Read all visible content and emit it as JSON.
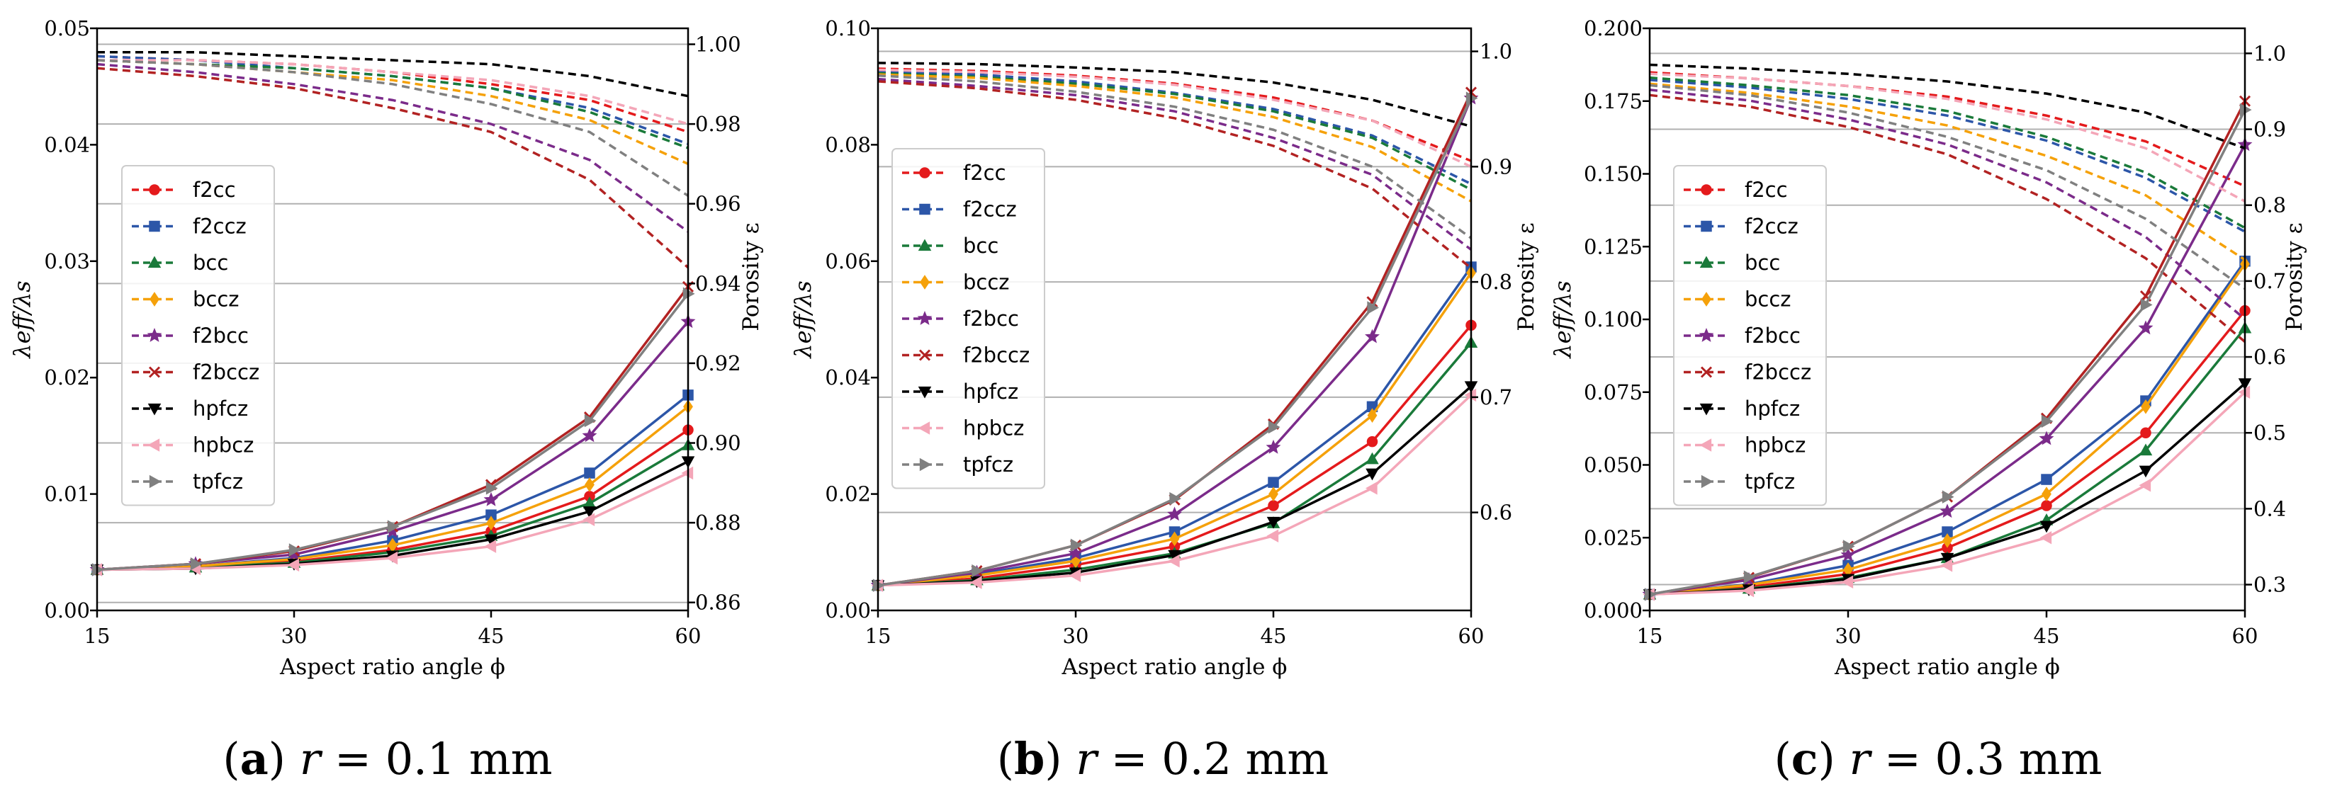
{
  "figure": {
    "captions": [
      {
        "label_prefix": "(",
        "label": "a",
        "label_suffix": ")",
        "var": "r",
        "rest": " = 0.1 mm"
      },
      {
        "label_prefix": "(",
        "label": "b",
        "label_suffix": ")",
        "var": "r",
        "rest": " = 0.2 mm"
      },
      {
        "label_prefix": "(",
        "label": "c",
        "label_suffix": ")",
        "var": "r",
        "rest": " = 0.3 mm"
      }
    ]
  },
  "chart_data": [
    {
      "type": "line",
      "title": "(a) r = 0.1 mm",
      "xlabel": "Aspect ratio angle ϕ",
      "ylabel": "λeff/λs",
      "y2label": "Porosity ε",
      "x": [
        15,
        22.5,
        30,
        37.5,
        45,
        52.5,
        60
      ],
      "xticks": [
        "15",
        "30",
        "45",
        "60"
      ],
      "ylim": [
        0,
        0.05
      ],
      "yticks": [
        "0.00",
        "0.01",
        "0.02",
        "0.03",
        "0.04",
        "0.05"
      ],
      "y2lim": [
        0.858,
        1.004
      ],
      "y2ticks": [
        "0.86",
        "0.88",
        "0.90",
        "0.92",
        "0.94",
        "0.96",
        "0.98",
        "1.00"
      ],
      "legend_position": "center-left",
      "series": [
        {
          "name": "f2cc",
          "color": "#e41a1c",
          "marker": "circle",
          "conductivity": [
            0.0035,
            0.0037,
            0.0042,
            0.0052,
            0.0068,
            0.0098,
            0.0155
          ],
          "porosity": [
            0.997,
            0.996,
            0.995,
            0.993,
            0.99,
            0.986,
            0.978
          ]
        },
        {
          "name": "f2ccz",
          "color": "#2c56a8",
          "marker": "square",
          "conductivity": [
            0.0035,
            0.0038,
            0.0045,
            0.006,
            0.0082,
            0.0118,
            0.0185
          ],
          "porosity": [
            0.997,
            0.996,
            0.994,
            0.992,
            0.989,
            0.984,
            0.975
          ]
        },
        {
          "name": "bcc",
          "color": "#1a7a3a",
          "marker": "triangle-up",
          "conductivity": [
            0.0035,
            0.0037,
            0.0041,
            0.005,
            0.0064,
            0.0092,
            0.0142
          ],
          "porosity": [
            0.996,
            0.995,
            0.994,
            0.992,
            0.989,
            0.983,
            0.974
          ]
        },
        {
          "name": "bccz",
          "color": "#f5a10a",
          "marker": "diamond",
          "conductivity": [
            0.0035,
            0.0038,
            0.0044,
            0.0056,
            0.0075,
            0.0108,
            0.0175
          ],
          "porosity": [
            0.996,
            0.995,
            0.993,
            0.991,
            0.987,
            0.981,
            0.97
          ]
        },
        {
          "name": "f2bcc",
          "color": "#7b2b8a",
          "marker": "star",
          "conductivity": [
            0.0035,
            0.004,
            0.0048,
            0.0068,
            0.0095,
            0.015,
            0.0248
          ],
          "porosity": [
            0.995,
            0.993,
            0.99,
            0.986,
            0.98,
            0.971,
            0.953
          ]
        },
        {
          "name": "f2bccz",
          "color": "#b22222",
          "marker": "x",
          "conductivity": [
            0.0035,
            0.004,
            0.0051,
            0.0072,
            0.0108,
            0.0166,
            0.0278
          ],
          "porosity": [
            0.994,
            0.992,
            0.989,
            0.984,
            0.978,
            0.966,
            0.944
          ]
        },
        {
          "name": "hpfcz",
          "color": "#000000",
          "marker": "triangle-down",
          "conductivity": [
            0.0035,
            0.0036,
            0.004,
            0.0047,
            0.0061,
            0.0085,
            0.0128
          ],
          "porosity": [
            0.998,
            0.998,
            0.997,
            0.996,
            0.995,
            0.992,
            0.987
          ]
        },
        {
          "name": "hpbcz",
          "color": "#f4a6b8",
          "marker": "triangle-left",
          "conductivity": [
            0.0035,
            0.0036,
            0.0039,
            0.0045,
            0.0055,
            0.0078,
            0.0118
          ],
          "porosity": [
            0.996,
            0.996,
            0.995,
            0.993,
            0.991,
            0.987,
            0.98
          ]
        },
        {
          "name": "tpfcz",
          "color": "#808080",
          "marker": "triangle-right",
          "conductivity": [
            0.0035,
            0.004,
            0.0052,
            0.0072,
            0.0105,
            0.0163,
            0.0272
          ],
          "porosity": [
            0.996,
            0.995,
            0.993,
            0.99,
            0.985,
            0.978,
            0.962
          ]
        }
      ]
    },
    {
      "type": "line",
      "title": "(b) r = 0.2 mm",
      "xlabel": "Aspect ratio angle ϕ",
      "ylabel": "λeff/λs",
      "y2label": "Porosity ε",
      "x": [
        15,
        22.5,
        30,
        37.5,
        45,
        52.5,
        60
      ],
      "xticks": [
        "15",
        "30",
        "45",
        "60"
      ],
      "ylim": [
        0,
        0.1
      ],
      "yticks": [
        "0.00",
        "0.02",
        "0.04",
        "0.06",
        "0.08",
        "0.10"
      ],
      "y2lim": [
        0.515,
        1.02
      ],
      "y2ticks": [
        "0.6",
        "0.7",
        "0.8",
        "0.9",
        "1.0"
      ],
      "legend_position": "center-left",
      "series": [
        {
          "name": "f2cc",
          "color": "#e41a1c",
          "marker": "circle",
          "conductivity": [
            0.0043,
            0.0055,
            0.0078,
            0.011,
            0.018,
            0.029,
            0.049
          ],
          "porosity": [
            0.985,
            0.983,
            0.979,
            0.972,
            0.96,
            0.94,
            0.905
          ]
        },
        {
          "name": "f2ccz",
          "color": "#2c56a8",
          "marker": "square",
          "conductivity": [
            0.0043,
            0.0062,
            0.009,
            0.0135,
            0.022,
            0.035,
            0.059
          ],
          "porosity": [
            0.982,
            0.98,
            0.974,
            0.964,
            0.95,
            0.927,
            0.885
          ]
        },
        {
          "name": "bcc",
          "color": "#1a7a3a",
          "marker": "triangle-up",
          "conductivity": [
            0.0043,
            0.0052,
            0.007,
            0.0098,
            0.015,
            0.026,
            0.046
          ],
          "porosity": [
            0.981,
            0.978,
            0.972,
            0.963,
            0.948,
            0.925,
            0.88
          ]
        },
        {
          "name": "bccz",
          "color": "#f5a10a",
          "marker": "diamond",
          "conductivity": [
            0.0043,
            0.006,
            0.0085,
            0.0123,
            0.02,
            0.0335,
            0.058
          ],
          "porosity": [
            0.98,
            0.977,
            0.97,
            0.96,
            0.943,
            0.917,
            0.87
          ]
        },
        {
          "name": "f2bcc",
          "color": "#7b2b8a",
          "marker": "star",
          "conductivity": [
            0.0043,
            0.0065,
            0.0098,
            0.0165,
            0.028,
            0.047,
            0.088
          ],
          "porosity": [
            0.976,
            0.97,
            0.962,
            0.948,
            0.925,
            0.893,
            0.828
          ]
        },
        {
          "name": "f2bccz",
          "color": "#b22222",
          "marker": "x",
          "conductivity": [
            0.0043,
            0.0068,
            0.0112,
            0.019,
            0.032,
            0.053,
            0.089
          ],
          "porosity": [
            0.974,
            0.968,
            0.958,
            0.942,
            0.918,
            0.881,
            0.812
          ]
        },
        {
          "name": "hpfcz",
          "color": "#000000",
          "marker": "triangle-down",
          "conductivity": [
            0.0043,
            0.005,
            0.0065,
            0.0095,
            0.0152,
            0.0235,
            0.0385
          ],
          "porosity": [
            0.99,
            0.989,
            0.986,
            0.982,
            0.973,
            0.958,
            0.935
          ]
        },
        {
          "name": "hpbcz",
          "color": "#f4a6b8",
          "marker": "triangle-left",
          "conductivity": [
            0.0043,
            0.0048,
            0.006,
            0.0085,
            0.0128,
            0.021,
            0.037
          ],
          "porosity": [
            0.984,
            0.982,
            0.978,
            0.971,
            0.958,
            0.94,
            0.9
          ]
        },
        {
          "name": "tpfcz",
          "color": "#808080",
          "marker": "triangle-right",
          "conductivity": [
            0.0043,
            0.0068,
            0.0112,
            0.0192,
            0.0315,
            0.052,
            0.088
          ],
          "porosity": [
            0.979,
            0.974,
            0.965,
            0.952,
            0.932,
            0.9,
            0.838
          ]
        }
      ]
    },
    {
      "type": "line",
      "title": "(c) r = 0.3 mm",
      "xlabel": "Aspect ratio angle ϕ",
      "ylabel": "λeff/λs",
      "y2label": "Porosity ε",
      "x": [
        15,
        22.5,
        30,
        37.5,
        45,
        52.5,
        60
      ],
      "xticks": [
        "15",
        "30",
        "45",
        "60"
      ],
      "ylim": [
        0,
        0.2
      ],
      "yticks": [
        "0.000",
        "0.025",
        "0.050",
        "0.075",
        "0.100",
        "0.125",
        "0.150",
        "0.175",
        "0.200"
      ],
      "y2lim": [
        0.266,
        1.033
      ],
      "y2ticks": [
        "0.3",
        "0.4",
        "0.5",
        "0.6",
        "0.7",
        "0.8",
        "0.9",
        "1.0"
      ],
      "legend_position": "center-left",
      "series": [
        {
          "name": "f2cc",
          "color": "#e41a1c",
          "marker": "circle",
          "conductivity": [
            0.0055,
            0.008,
            0.0125,
            0.0215,
            0.036,
            0.061,
            0.103
          ],
          "porosity": [
            0.975,
            0.967,
            0.957,
            0.943,
            0.918,
            0.884,
            0.825
          ]
        },
        {
          "name": "f2ccz",
          "color": "#2c56a8",
          "marker": "square",
          "conductivity": [
            0.0055,
            0.009,
            0.0155,
            0.027,
            0.045,
            0.072,
            0.12
          ],
          "porosity": [
            0.965,
            0.955,
            0.94,
            0.918,
            0.885,
            0.836,
            0.765
          ]
        },
        {
          "name": "bcc",
          "color": "#1a7a3a",
          "marker": "triangle-up",
          "conductivity": [
            0.0055,
            0.0075,
            0.0112,
            0.018,
            0.031,
            0.055,
            0.097
          ],
          "porosity": [
            0.968,
            0.958,
            0.945,
            0.924,
            0.89,
            0.843,
            0.77
          ]
        },
        {
          "name": "bccz",
          "color": "#f5a10a",
          "marker": "diamond",
          "conductivity": [
            0.0055,
            0.0088,
            0.014,
            0.024,
            0.04,
            0.07,
            0.119
          ],
          "porosity": [
            0.96,
            0.948,
            0.93,
            0.905,
            0.865,
            0.813,
            0.728
          ]
        },
        {
          "name": "f2bcc",
          "color": "#7b2b8a",
          "marker": "star",
          "conductivity": [
            0.0055,
            0.0105,
            0.019,
            0.034,
            0.059,
            0.097,
            0.16
          ],
          "porosity": [
            0.952,
            0.938,
            0.913,
            0.88,
            0.83,
            0.758,
            0.65
          ]
        },
        {
          "name": "f2bccz",
          "color": "#b22222",
          "marker": "x",
          "conductivity": [
            0.0055,
            0.0113,
            0.022,
            0.039,
            0.066,
            0.108,
            0.175
          ],
          "porosity": [
            0.945,
            0.93,
            0.903,
            0.867,
            0.808,
            0.73,
            0.62
          ]
        },
        {
          "name": "hpfcz",
          "color": "#000000",
          "marker": "triangle-down",
          "conductivity": [
            0.0055,
            0.0072,
            0.0108,
            0.018,
            0.029,
            0.048,
            0.078
          ],
          "porosity": [
            0.985,
            0.98,
            0.973,
            0.963,
            0.947,
            0.922,
            0.875
          ]
        },
        {
          "name": "hpbcz",
          "color": "#f4a6b8",
          "marker": "triangle-left",
          "conductivity": [
            0.0055,
            0.0068,
            0.0098,
            0.0155,
            0.025,
            0.043,
            0.075
          ],
          "porosity": [
            0.973,
            0.967,
            0.957,
            0.94,
            0.913,
            0.875,
            0.805
          ]
        },
        {
          "name": "tpfcz",
          "color": "#808080",
          "marker": "triangle-right",
          "conductivity": [
            0.0055,
            0.0115,
            0.022,
            0.039,
            0.065,
            0.105,
            0.172
          ],
          "porosity": [
            0.958,
            0.945,
            0.922,
            0.89,
            0.846,
            0.782,
            0.69
          ]
        }
      ]
    }
  ]
}
